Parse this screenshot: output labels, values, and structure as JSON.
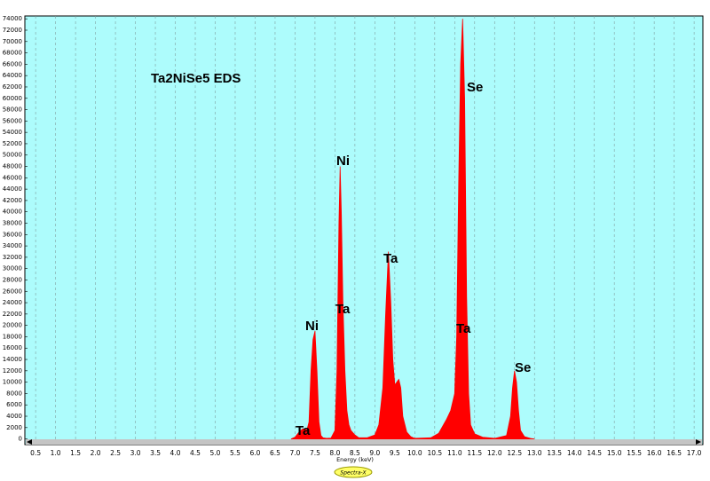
{
  "chart_data": {
    "type": "area",
    "title": "Ta2NiSe5 EDS",
    "x_label": "Energy (keV)",
    "logo": "Spectra-X",
    "color": "#ff0000",
    "background": "#adfcfc",
    "grid": true,
    "xlim": [
      0.23,
      17.22
    ],
    "ylim": [
      -1000,
      74500
    ],
    "xticks": [
      0.5,
      {
        "value": 1,
        "label": "1.0"
      },
      1.5,
      {
        "value": 2,
        "label": "2.0"
      },
      2.5,
      {
        "value": 3,
        "label": "3.0"
      },
      3.5,
      {
        "value": 4,
        "label": "4.0"
      },
      4.5,
      {
        "value": 5,
        "label": "5.0"
      },
      5.5,
      {
        "value": 6,
        "label": "6.0"
      },
      6.5,
      {
        "value": 7,
        "label": "7.0"
      },
      7.5,
      {
        "value": 8,
        "label": "8.0"
      },
      8.5,
      {
        "value": 9,
        "label": "9.0"
      },
      9.5,
      {
        "value": 10,
        "label": "10.0"
      },
      10.5,
      {
        "value": 11,
        "label": "11.0"
      },
      11.5,
      {
        "value": 12,
        "label": "12.0"
      },
      12.5,
      {
        "value": 13,
        "label": "13.0"
      },
      13.5,
      {
        "value": 14,
        "label": "14.0"
      },
      14.5,
      {
        "value": 15,
        "label": "15.0"
      },
      15.5,
      {
        "value": 16,
        "label": "16.0"
      },
      16.5,
      {
        "value": 17,
        "label": "17.0"
      }
    ],
    "yticks": [
      0,
      2000,
      4000,
      6000,
      8000,
      10000,
      12000,
      14000,
      16000,
      18000,
      20000,
      22000,
      24000,
      26000,
      28000,
      30000,
      32000,
      34000,
      36000,
      38000,
      40000,
      42000,
      44000,
      46000,
      48000,
      50000,
      52000,
      54000,
      56000,
      58000,
      60000,
      62000,
      64000,
      66000,
      68000,
      70000,
      72000,
      74000
    ],
    "x": [
      6.9,
      7.0,
      7.1,
      7.2,
      7.3,
      7.35,
      7.4,
      7.45,
      7.5,
      7.55,
      7.6,
      7.65,
      7.7,
      7.8,
      7.9,
      8.0,
      8.05,
      8.1,
      8.13,
      8.16,
      8.2,
      8.25,
      8.3,
      8.35,
      8.4,
      8.5,
      8.6,
      8.8,
      9.0,
      9.1,
      9.2,
      9.27,
      9.34,
      9.4,
      9.45,
      9.5,
      9.55,
      9.6,
      9.65,
      9.7,
      9.8,
      9.9,
      10.0,
      10.4,
      10.6,
      10.8,
      10.9,
      11.0,
      11.05,
      11.1,
      11.15,
      11.2,
      11.25,
      11.3,
      11.35,
      11.4,
      11.5,
      11.7,
      12.0,
      12.3,
      12.4,
      12.45,
      12.5,
      12.55,
      12.6,
      12.65,
      12.75,
      12.9,
      13.0
    ],
    "values": [
      0,
      300,
      1200,
      1800,
      1600,
      3000,
      12000,
      17500,
      19000,
      12000,
      3000,
      600,
      200,
      100,
      150,
      1500,
      12000,
      38000,
      48000,
      40000,
      24000,
      12000,
      5000,
      2500,
      1500,
      700,
      200,
      200,
      700,
      2500,
      9000,
      22000,
      33000,
      24000,
      14000,
      9500,
      10000,
      10500,
      9000,
      4000,
      1200,
      400,
      100,
      200,
      1000,
      3500,
      5000,
      8000,
      18000,
      45000,
      66000,
      74000,
      60000,
      25000,
      8000,
      2500,
      900,
      300,
      100,
      600,
      4000,
      9000,
      12000,
      10000,
      5000,
      1500,
      400,
      100,
      0
    ],
    "annotations": [
      "Ta",
      "Ni",
      "Ni",
      "Ta",
      "Ta",
      "Se",
      "Ta",
      "Se"
    ]
  }
}
